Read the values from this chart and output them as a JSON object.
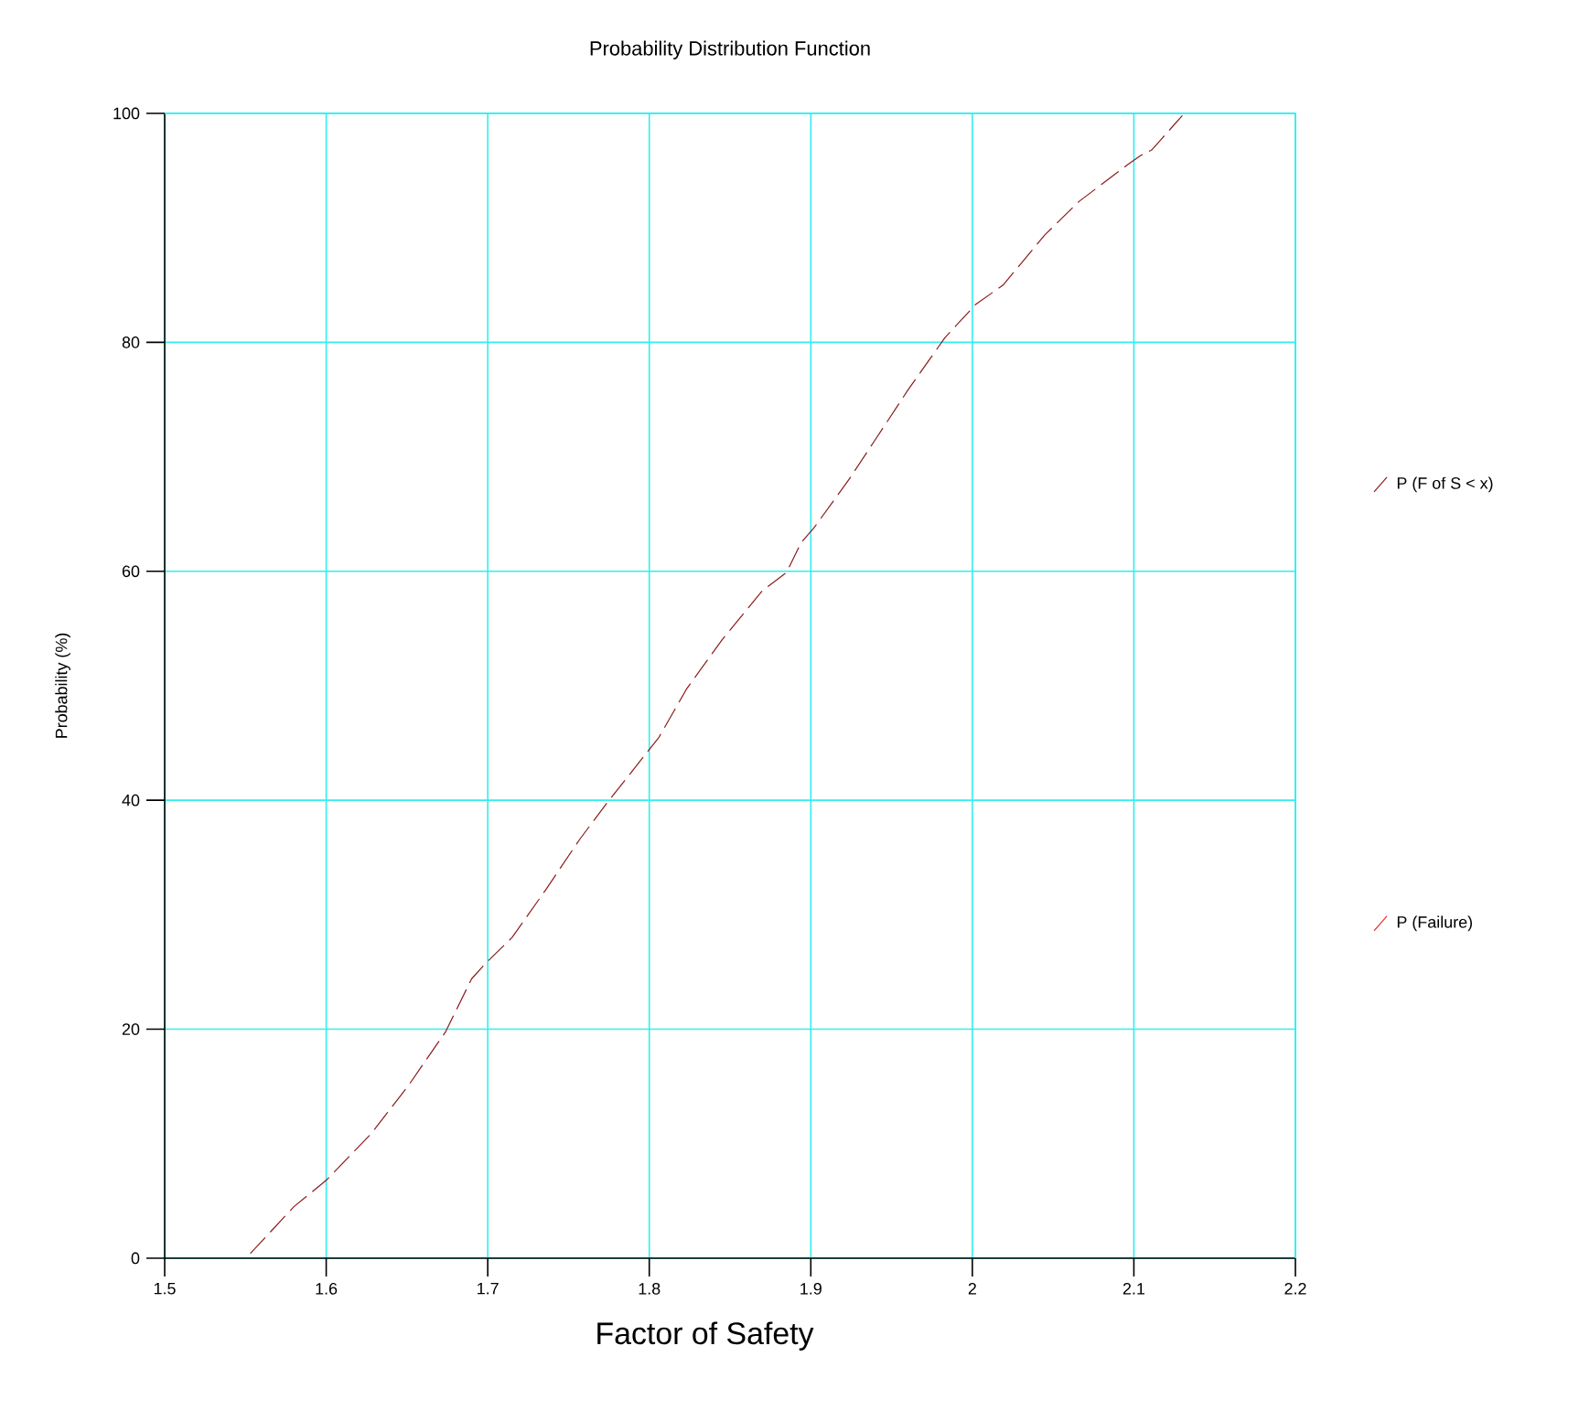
{
  "chart_data": {
    "type": "line",
    "title": "Probability Distribution Function",
    "xlabel": "Factor of Safety",
    "ylabel": "Probability (%)",
    "xlim": [
      1.5,
      2.2
    ],
    "ylim": [
      0,
      100
    ],
    "xticks": [
      1.5,
      1.6,
      1.7,
      1.8,
      1.9,
      2,
      2.1,
      2.2
    ],
    "yticks": [
      0,
      20,
      40,
      60,
      80,
      100
    ],
    "grid": true,
    "legend": "right",
    "line_style": "dashed",
    "marker": "none",
    "series": [
      {
        "name": "P (F of S < x)",
        "color": "#8b1a1a",
        "x": [
          1.553,
          1.58,
          1.6,
          1.628,
          1.651,
          1.674,
          1.69,
          1.699,
          1.715,
          1.736,
          1.757,
          1.774,
          1.806,
          1.823,
          1.845,
          1.87,
          1.885,
          1.894,
          1.902,
          1.924,
          1.939,
          1.96,
          1.968,
          1.983,
          2.002,
          2.019,
          2.045,
          2.066,
          2.096,
          2.104,
          2.111,
          2.123,
          2.13
        ],
        "values": [
          0.4,
          4.5,
          6.8,
          10.9,
          15.1,
          19.8,
          24.4,
          25.8,
          28.0,
          32.2,
          36.6,
          39.8,
          45.5,
          49.7,
          54.0,
          58.3,
          59.9,
          62.5,
          63.8,
          68.1,
          71.3,
          75.8,
          77.4,
          80.4,
          83.3,
          85.0,
          89.4,
          92.3,
          95.5,
          96.3,
          96.8,
          98.7,
          99.8
        ]
      },
      {
        "name": "P (Failure)",
        "color": "#e03030"
      }
    ]
  }
}
